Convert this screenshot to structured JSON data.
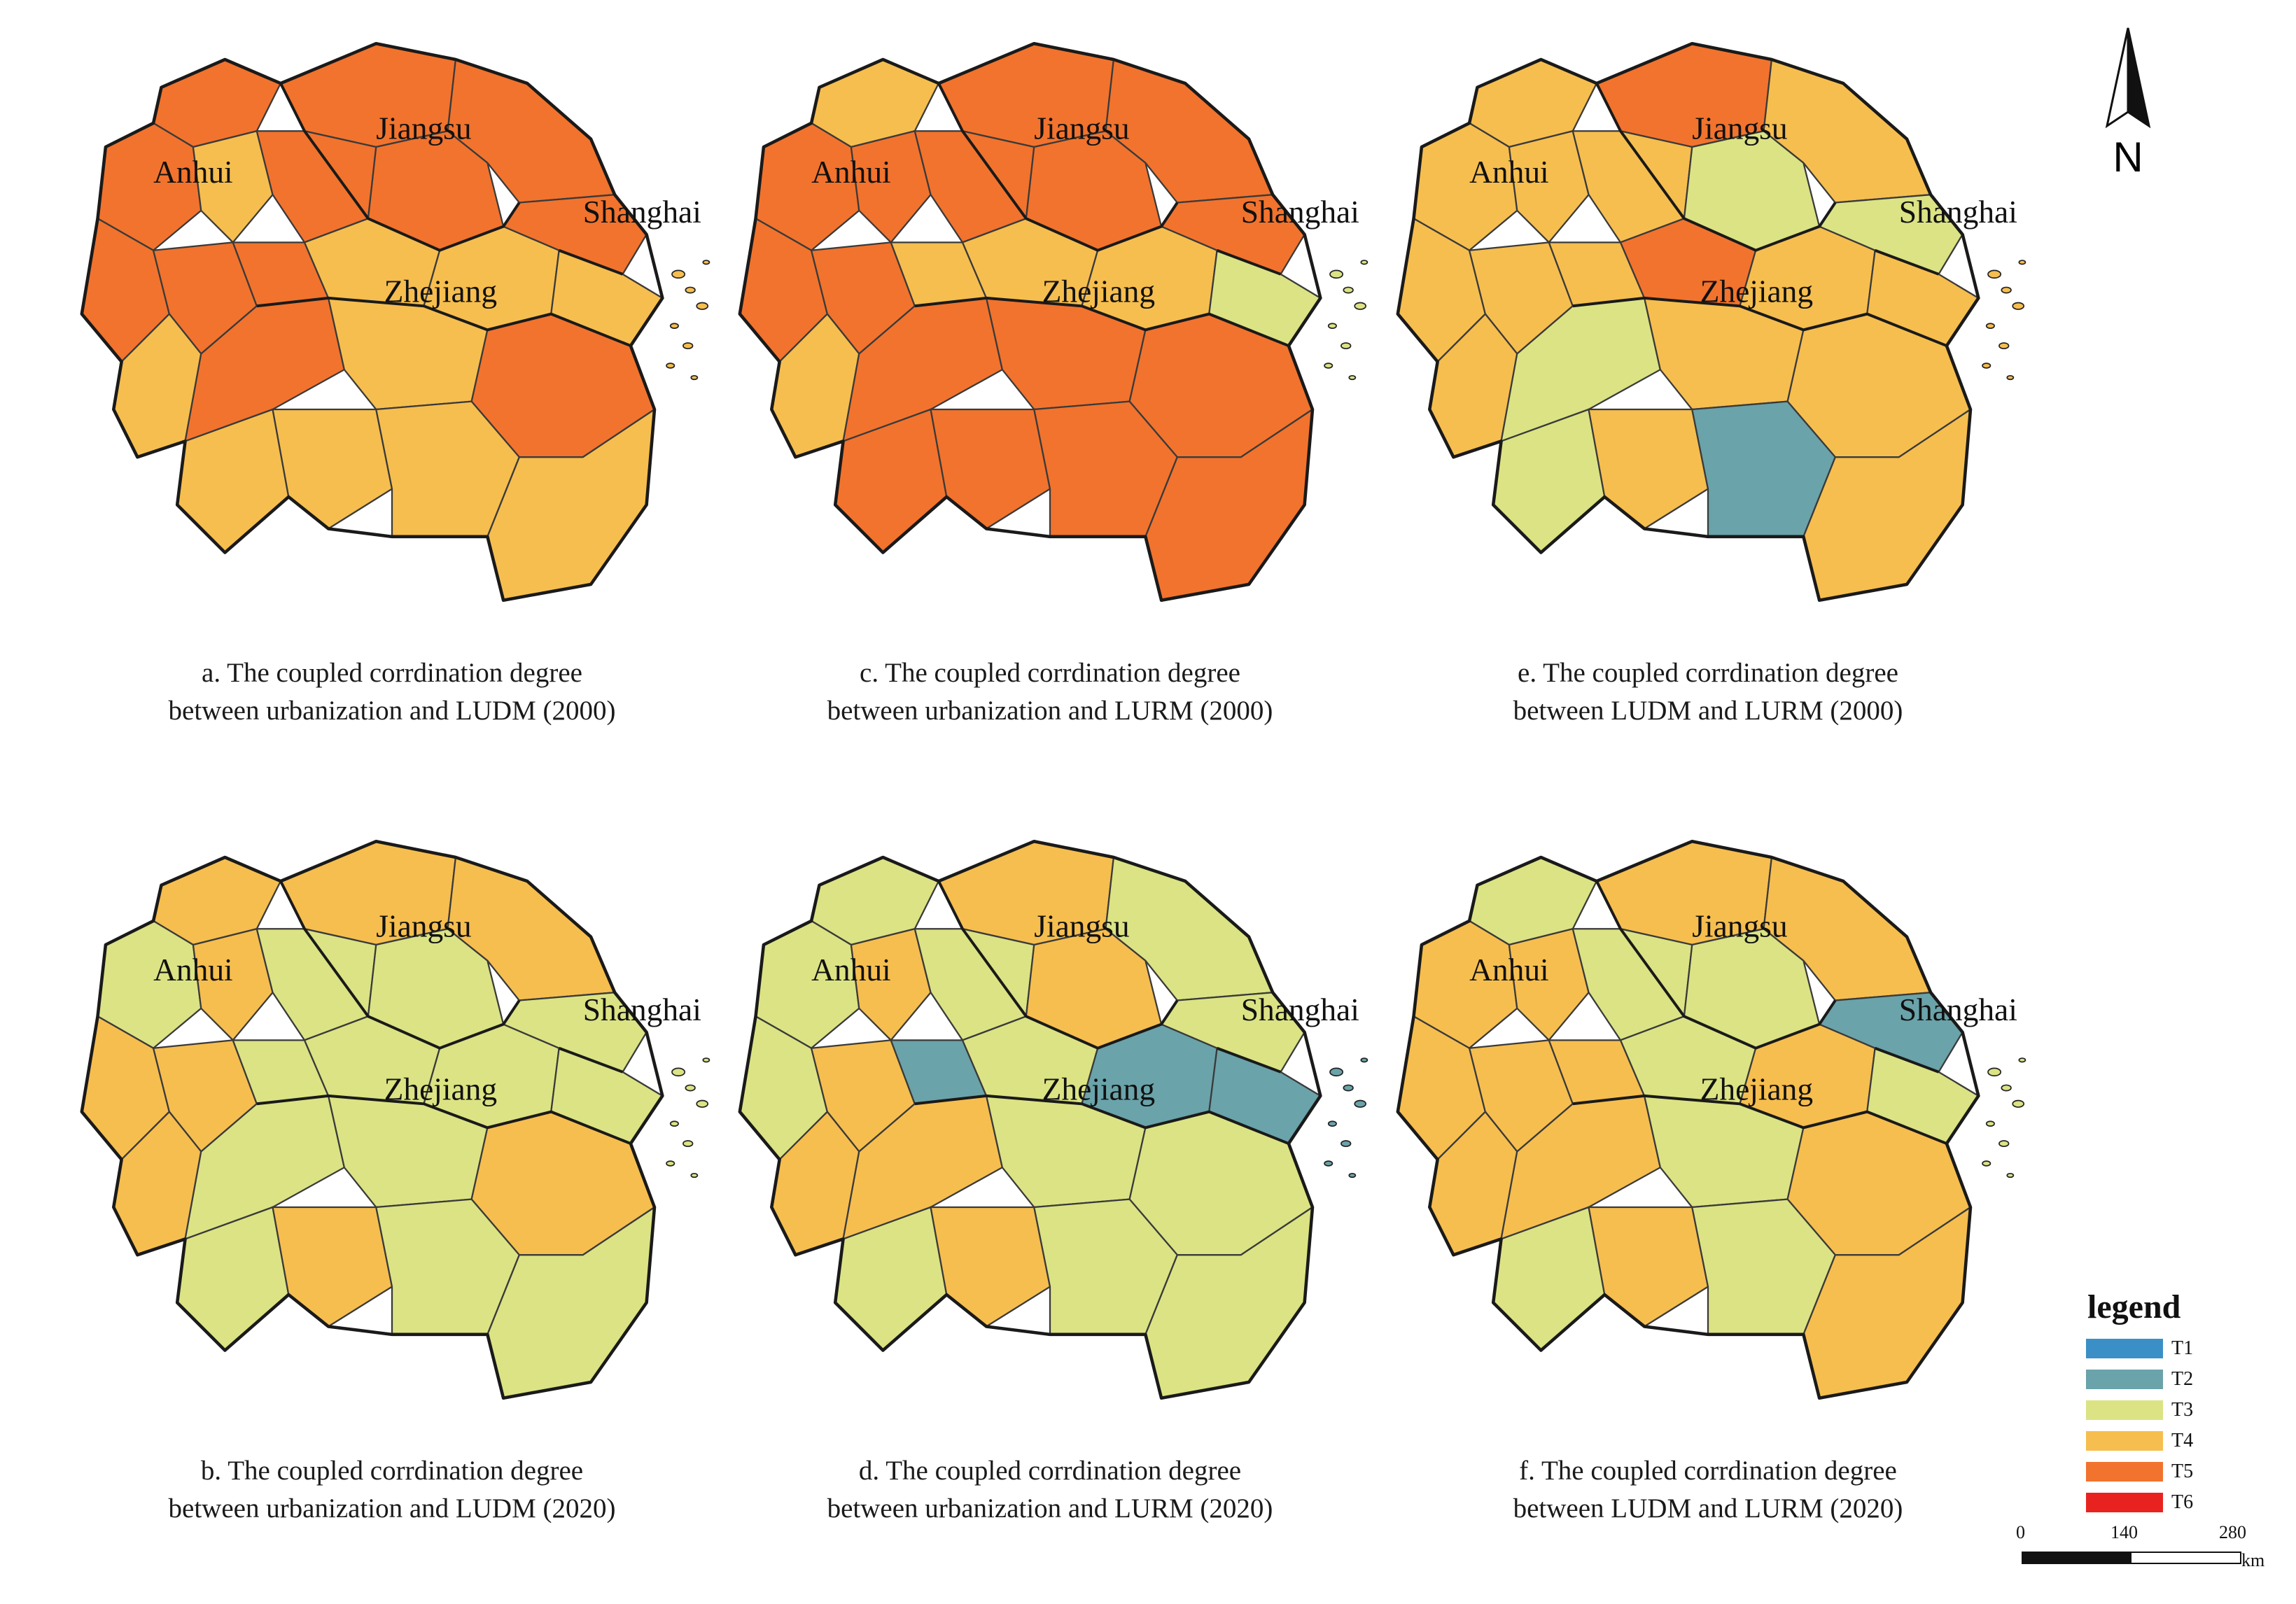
{
  "compass": {
    "label": "N"
  },
  "legend": {
    "title": "legend",
    "items": [
      {
        "label": "T1",
        "color": "#3b8fc7"
      },
      {
        "label": "T2",
        "color": "#6aa3aa"
      },
      {
        "label": "T3",
        "color": "#dbe384"
      },
      {
        "label": "T4",
        "color": "#f6be4f"
      },
      {
        "label": "T5",
        "color": "#f2732d"
      },
      {
        "label": "T6",
        "color": "#e8231f"
      }
    ]
  },
  "scale_bar": {
    "ticks": [
      "0",
      "140",
      "280"
    ],
    "unit": "km"
  },
  "province_labels": {
    "anhui": "Anhui",
    "jiangsu": "Jiangsu",
    "shanghai": "Shanghai",
    "zhejiang": "Zhejiang"
  },
  "panels": [
    {
      "id": "a",
      "caption_line1": "a. The coupled corrdination degree",
      "caption_line2": "between urbanization and LUDM (2000)",
      "colors": [
        "T5",
        "T5",
        "T5",
        "T5",
        "T4",
        "T5",
        "T5",
        "T5",
        "T5",
        "T5",
        "T4",
        "T4",
        "T5",
        "T4",
        "T4",
        "T5",
        "T4",
        "T5",
        "T4",
        "T4",
        "T4",
        "T4"
      ]
    },
    {
      "id": "c",
      "caption_line1": "c. The coupled corrdination degree",
      "caption_line2": "between urbanization and LURM (2000)",
      "colors": [
        "T4",
        "T5",
        "T5",
        "T5",
        "T5",
        "T5",
        "T5",
        "T5",
        "T5",
        "T4",
        "T4",
        "T4",
        "T5",
        "T3",
        "T4",
        "T5",
        "T5",
        "T5",
        "T5",
        "T5",
        "T5",
        "T5"
      ]
    },
    {
      "id": "e",
      "caption_line1": "e. The coupled corrdination degree",
      "caption_line2": "between LUDM and LURM (2000)",
      "colors": [
        "T4",
        "T5",
        "T4",
        "T4",
        "T4",
        "T4",
        "T3",
        "T4",
        "T4",
        "T4",
        "T5",
        "T4",
        "T3",
        "T4",
        "T4",
        "T3",
        "T4",
        "T4",
        "T3",
        "T4",
        "T2",
        "T4"
      ]
    },
    {
      "id": "b",
      "caption_line1": "b. The coupled corrdination degree",
      "caption_line2": "between urbanization and LUDM (2020)",
      "colors": [
        "T4",
        "T4",
        "T4",
        "T3",
        "T4",
        "T3",
        "T3",
        "T4",
        "T4",
        "T3",
        "T3",
        "T3",
        "T3",
        "T3",
        "T4",
        "T3",
        "T3",
        "T4",
        "T3",
        "T4",
        "T3",
        "T3"
      ]
    },
    {
      "id": "d",
      "caption_line1": "d. The coupled corrdination degree",
      "caption_line2": "between urbanization and LURM (2020)",
      "colors": [
        "T3",
        "T4",
        "T3",
        "T3",
        "T4",
        "T3",
        "T4",
        "T3",
        "T4",
        "T2",
        "T3",
        "T2",
        "T3",
        "T2",
        "T4",
        "T4",
        "T3",
        "T3",
        "T3",
        "T4",
        "T3",
        "T3"
      ]
    },
    {
      "id": "f",
      "caption_line1": "f. The coupled corrdination degree",
      "caption_line2": "between LUDM and LURM (2020)",
      "colors": [
        "T3",
        "T4",
        "T4",
        "T4",
        "T4",
        "T3",
        "T3",
        "T4",
        "T4",
        "T4",
        "T3",
        "T4",
        "T2",
        "T3",
        "T4",
        "T4",
        "T3",
        "T4",
        "T3",
        "T4",
        "T3",
        "T4"
      ]
    }
  ]
}
